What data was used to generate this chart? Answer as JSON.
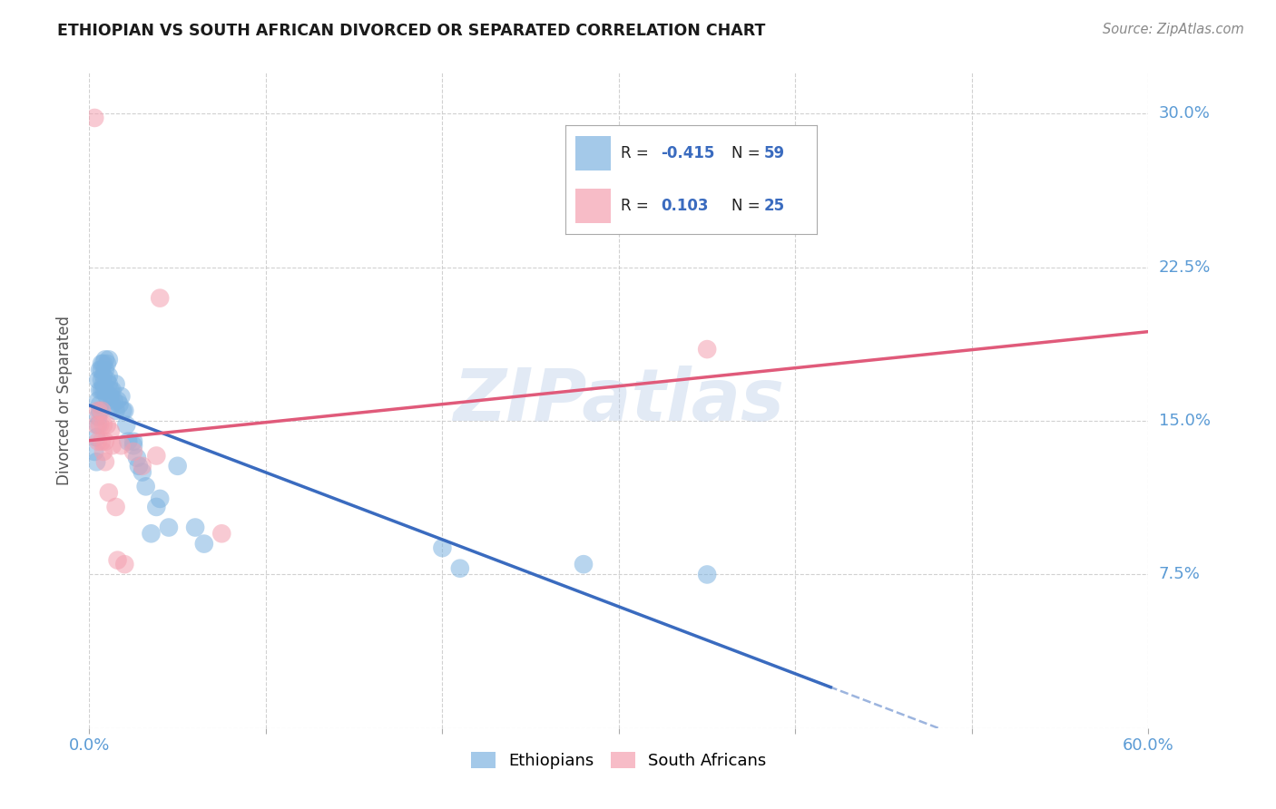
{
  "title": "ETHIOPIAN VS SOUTH AFRICAN DIVORCED OR SEPARATED CORRELATION CHART",
  "source": "Source: ZipAtlas.com",
  "ylabel": "Divorced or Separated",
  "xlim": [
    0.0,
    0.6
  ],
  "ylim": [
    0.0,
    0.32
  ],
  "xticks": [
    0.0,
    0.1,
    0.2,
    0.3,
    0.4,
    0.5,
    0.6
  ],
  "xticklabels": [
    "0.0%",
    "",
    "",
    "",
    "",
    "",
    "60.0%"
  ],
  "yticks": [
    0.0,
    0.075,
    0.15,
    0.225,
    0.3
  ],
  "yticklabels": [
    "",
    "7.5%",
    "15.0%",
    "22.5%",
    "30.0%"
  ],
  "grid_color": "#cccccc",
  "background_color": "#ffffff",
  "watermark": "ZIPatlas",
  "ethiopians_color": "#7eb3e0",
  "south_africans_color": "#f4a0b0",
  "ethiopians_line_color": "#3a6bbf",
  "south_africans_line_color": "#e05a7a",
  "legend_R_ethiopians": "-0.415",
  "legend_N_ethiopians": "59",
  "legend_R_south_africans": "0.103",
  "legend_N_south_africans": "25",
  "ethiopians_x": [
    0.003,
    0.004,
    0.004,
    0.005,
    0.005,
    0.005,
    0.005,
    0.006,
    0.006,
    0.006,
    0.006,
    0.007,
    0.007,
    0.007,
    0.007,
    0.008,
    0.008,
    0.008,
    0.008,
    0.009,
    0.009,
    0.009,
    0.01,
    0.01,
    0.01,
    0.011,
    0.011,
    0.011,
    0.012,
    0.012,
    0.013,
    0.013,
    0.014,
    0.015,
    0.015,
    0.016,
    0.017,
    0.018,
    0.019,
    0.02,
    0.021,
    0.022,
    0.025,
    0.025,
    0.027,
    0.028,
    0.03,
    0.032,
    0.035,
    0.038,
    0.04,
    0.045,
    0.05,
    0.06,
    0.065,
    0.2,
    0.21,
    0.28,
    0.35
  ],
  "ethiopians_y": [
    0.135,
    0.142,
    0.13,
    0.148,
    0.152,
    0.16,
    0.17,
    0.155,
    0.158,
    0.165,
    0.175,
    0.165,
    0.17,
    0.175,
    0.178,
    0.165,
    0.172,
    0.168,
    0.178,
    0.165,
    0.175,
    0.18,
    0.162,
    0.17,
    0.178,
    0.168,
    0.172,
    0.18,
    0.162,
    0.165,
    0.158,
    0.165,
    0.16,
    0.168,
    0.155,
    0.16,
    0.158,
    0.162,
    0.155,
    0.155,
    0.148,
    0.14,
    0.14,
    0.138,
    0.132,
    0.128,
    0.125,
    0.118,
    0.095,
    0.108,
    0.112,
    0.098,
    0.128,
    0.098,
    0.09,
    0.088,
    0.078,
    0.08,
    0.075
  ],
  "south_africans_x": [
    0.003,
    0.004,
    0.005,
    0.005,
    0.006,
    0.007,
    0.007,
    0.008,
    0.008,
    0.009,
    0.009,
    0.01,
    0.011,
    0.012,
    0.013,
    0.015,
    0.016,
    0.018,
    0.02,
    0.025,
    0.03,
    0.038,
    0.04,
    0.075,
    0.35
  ],
  "south_africans_y": [
    0.298,
    0.148,
    0.155,
    0.14,
    0.148,
    0.155,
    0.14,
    0.148,
    0.135,
    0.14,
    0.13,
    0.148,
    0.115,
    0.145,
    0.138,
    0.108,
    0.082,
    0.138,
    0.08,
    0.135,
    0.128,
    0.133,
    0.21,
    0.095,
    0.185
  ]
}
